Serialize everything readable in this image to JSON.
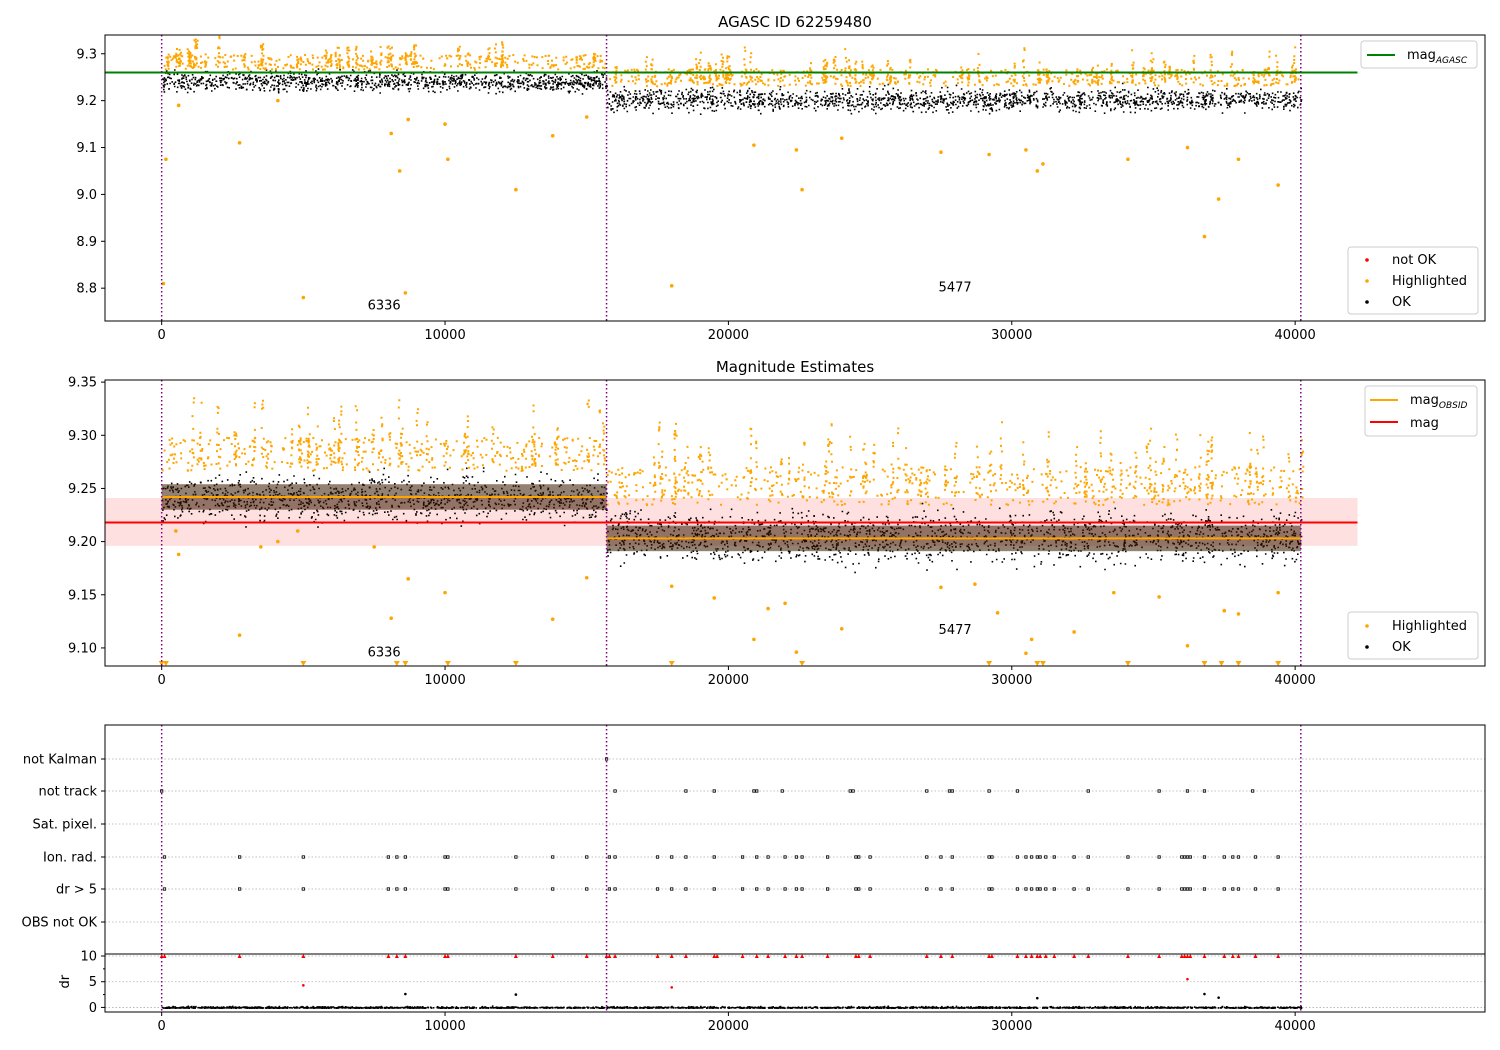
{
  "chart_data": [
    {
      "type": "scatter",
      "title": "AGASC ID 62259480",
      "xlim": [
        -2000,
        46700
      ],
      "ylim": [
        8.73,
        9.34
      ],
      "xticks": [
        0,
        10000,
        20000,
        30000,
        40000
      ],
      "yticks": [
        8.8,
        8.9,
        9.0,
        9.1,
        9.2,
        9.3
      ],
      "obsid_boundaries": [
        0,
        15700,
        40200
      ],
      "obsid_annotations": [
        {
          "label": "6336",
          "x": 7850,
          "y": 8.755
        },
        {
          "label": "5477",
          "x": 28000,
          "y": 8.793
        }
      ],
      "segments": [
        {
          "x_start": 0,
          "x_end": 15700,
          "ok_center": 9.242,
          "ok_spread": 0.035
        },
        {
          "x_start": 15700,
          "x_end": 40200,
          "ok_center": 9.203,
          "ok_spread": 0.04
        }
      ],
      "mag_agasc": {
        "value": 9.26,
        "x_start": -2000,
        "x_end": 42200
      },
      "highlighted_outliers": [
        [
          60,
          8.81
        ],
        [
          150,
          9.075
        ],
        [
          600,
          9.19
        ],
        [
          2750,
          9.11
        ],
        [
          4100,
          9.2
        ],
        [
          5000,
          8.78
        ],
        [
          8100,
          9.13
        ],
        [
          8400,
          9.05
        ],
        [
          8600,
          8.79
        ],
        [
          8700,
          9.16
        ],
        [
          10000,
          9.15
        ],
        [
          10100,
          9.075
        ],
        [
          12500,
          9.01
        ],
        [
          13800,
          9.125
        ],
        [
          15000,
          9.165
        ],
        [
          18000,
          8.805
        ],
        [
          20900,
          9.105
        ],
        [
          22400,
          9.095
        ],
        [
          22600,
          9.01
        ],
        [
          24000,
          9.12
        ],
        [
          27500,
          9.09
        ],
        [
          29200,
          9.085
        ],
        [
          30500,
          9.095
        ],
        [
          30900,
          9.05
        ],
        [
          31100,
          9.065
        ],
        [
          34100,
          9.075
        ],
        [
          36200,
          9.1
        ],
        [
          36800,
          8.91
        ],
        [
          37300,
          8.99
        ],
        [
          38000,
          9.075
        ],
        [
          39400,
          9.02
        ]
      ],
      "legend": {
        "top": [
          "mag_AGASC"
        ],
        "bottom": [
          "not OK",
          "Highlighted",
          "OK"
        ]
      }
    },
    {
      "type": "scatter",
      "title": "Magnitude Estimates",
      "xlim": [
        -2000,
        46700
      ],
      "ylim": [
        9.083,
        9.352
      ],
      "xticks": [
        0,
        10000,
        20000,
        30000,
        40000
      ],
      "yticks": [
        9.1,
        9.15,
        9.2,
        9.25,
        9.3,
        9.35
      ],
      "obsid_boundaries": [
        0,
        15700,
        40200
      ],
      "obsid_annotations": [
        {
          "label": "6336",
          "x": 7850,
          "y": 9.092
        },
        {
          "label": "5477",
          "x": 28000,
          "y": 9.113
        }
      ],
      "segments": [
        {
          "x_start": 0,
          "x_end": 15700,
          "ok_center": 9.241,
          "ok_spread": 0.035,
          "mag_obsid": 9.242
        },
        {
          "x_start": 15700,
          "x_end": 40200,
          "ok_center": 9.205,
          "ok_spread": 0.04,
          "mag_obsid": 9.203
        }
      ],
      "mag": {
        "value": 9.218,
        "band": [
          9.196,
          9.241
        ],
        "x_start": -2000,
        "x_end": 42200
      },
      "highlighted_outliers": [
        [
          500,
          9.21
        ],
        [
          600,
          9.188
        ],
        [
          2750,
          9.112
        ],
        [
          3500,
          9.195
        ],
        [
          4100,
          9.2
        ],
        [
          4800,
          9.21
        ],
        [
          7500,
          9.195
        ],
        [
          8100,
          9.128
        ],
        [
          8700,
          9.165
        ],
        [
          10000,
          9.152
        ],
        [
          13800,
          9.127
        ],
        [
          15000,
          9.166
        ],
        [
          18000,
          9.158
        ],
        [
          19500,
          9.147
        ],
        [
          20900,
          9.108
        ],
        [
          21400,
          9.137
        ],
        [
          22000,
          9.142
        ],
        [
          22400,
          9.096
        ],
        [
          24000,
          9.118
        ],
        [
          27500,
          9.157
        ],
        [
          28700,
          9.16
        ],
        [
          29500,
          9.133
        ],
        [
          30500,
          9.095
        ],
        [
          30700,
          9.108
        ],
        [
          32200,
          9.115
        ],
        [
          33600,
          9.152
        ],
        [
          35200,
          9.148
        ],
        [
          36200,
          9.102
        ],
        [
          37500,
          9.135
        ],
        [
          38000,
          9.132
        ],
        [
          39400,
          9.152
        ]
      ],
      "below_axis_markers": [
        0,
        150,
        5000,
        8300,
        8600,
        10100,
        12500,
        18000,
        22600,
        29200,
        30900,
        31100,
        34100,
        36800,
        37400,
        38000,
        39400
      ],
      "legend": {
        "top": [
          "mag_OBSID",
          "mag"
        ],
        "bottom": [
          "Highlighted",
          "OK"
        ]
      }
    },
    {
      "type": "scatter",
      "title": "",
      "xlim": [
        -2000,
        46700
      ],
      "xticks": [
        0,
        10000,
        20000,
        30000,
        40000
      ],
      "obsid_boundaries": [
        0,
        15700,
        40200
      ],
      "flag_rows": [
        "not Kalman",
        "not track",
        "Sat. pixel.",
        "Ion. rad.",
        "dr > 5",
        "OBS not OK"
      ],
      "flag_points": {
        "not Kalman": [
          15700
        ],
        "not track": [
          0,
          16000,
          18500,
          19500,
          20900,
          21000,
          21900,
          24300,
          24400,
          27000,
          27800,
          27900,
          29200,
          30200,
          32700,
          35200,
          36200,
          36800,
          38500
        ],
        "Ion. rad.": [
          100,
          2750,
          5000,
          8000,
          8300,
          8600,
          10000,
          10100,
          12500,
          13800,
          15000,
          15800,
          16000,
          17500,
          18000,
          18500,
          19500,
          20500,
          21000,
          21400,
          22000,
          22400,
          22600,
          23500,
          24500,
          24600,
          25000,
          27000,
          27500,
          27900,
          29200,
          29300,
          30200,
          30500,
          30700,
          30900,
          31000,
          31200,
          31500,
          32200,
          32700,
          34100,
          35200,
          36000,
          36100,
          36200,
          36300,
          36800,
          37500,
          37800,
          38000,
          38600,
          39400
        ],
        "dr > 5": [
          100,
          2750,
          5000,
          8000,
          8300,
          8600,
          10000,
          10100,
          12500,
          13800,
          15000,
          15800,
          16000,
          17500,
          18000,
          18500,
          19500,
          20500,
          21000,
          21400,
          22000,
          22400,
          22600,
          23500,
          24500,
          24600,
          25000,
          27000,
          27500,
          27900,
          29200,
          29300,
          30200,
          30500,
          30700,
          30900,
          31000,
          31200,
          31500,
          32200,
          32700,
          34100,
          35200,
          36000,
          36100,
          36200,
          36300,
          36800,
          37500,
          37800,
          38000,
          38600,
          39400
        ]
      },
      "dr_panel": {
        "ylabel": "dr",
        "ylim": [
          -0.5,
          10
        ],
        "yticks": [
          0,
          5,
          10
        ],
        "clipped_points_x": [
          0,
          100,
          2750,
          5000,
          8000,
          8300,
          8600,
          10000,
          10100,
          12500,
          13800,
          15000,
          15700,
          15800,
          16000,
          17500,
          18000,
          18500,
          19500,
          19600,
          20500,
          21000,
          21400,
          22000,
          22400,
          22600,
          23500,
          24500,
          24600,
          25000,
          27000,
          27500,
          27900,
          29200,
          29300,
          30200,
          30500,
          30700,
          30900,
          31000,
          31200,
          31500,
          32200,
          32700,
          34100,
          35200,
          36000,
          36100,
          36200,
          36300,
          36800,
          37500,
          37800,
          38000,
          38600,
          39400
        ],
        "scattered_points": [
          [
            5000,
            4.3
          ],
          [
            8600,
            2.6
          ],
          [
            12500,
            2.5
          ],
          [
            18000,
            3.9
          ],
          [
            30900,
            1.8
          ],
          [
            36200,
            5.5
          ],
          [
            36800,
            2.6
          ],
          [
            37300,
            1.9
          ]
        ]
      }
    }
  ]
}
